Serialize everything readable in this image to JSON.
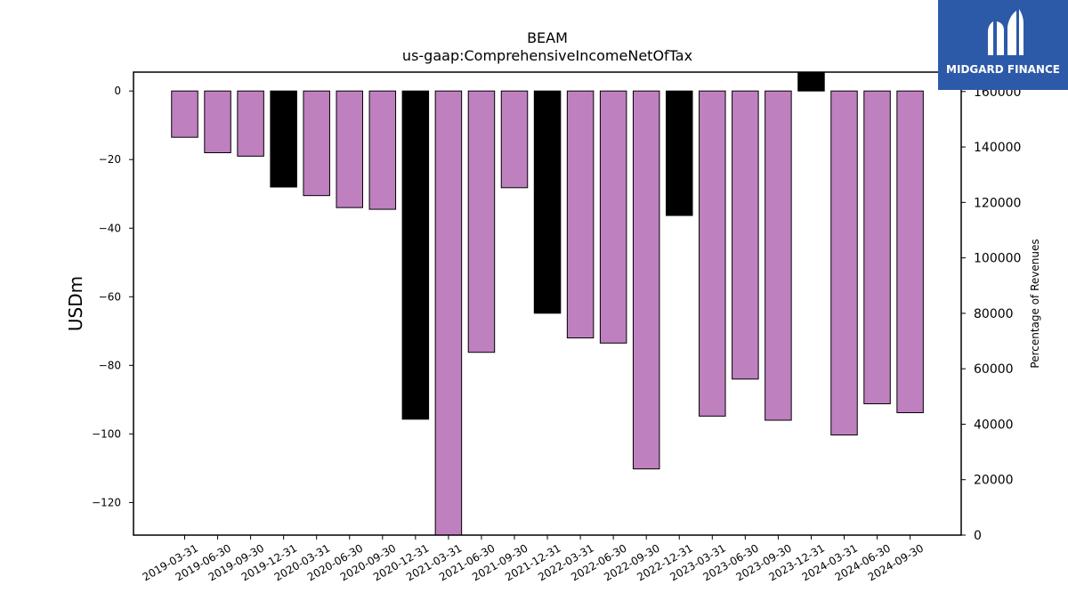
{
  "chart_data": {
    "type": "bar",
    "title": "BEAM",
    "subtitle": "us-gaap:ComprehensiveIncomeNetOfTax",
    "ylabel": "USDm",
    "ylabel_right": "Percentage of Revenues",
    "ylim": [
      -129.5,
      5.5
    ],
    "ylim_right": [
      0,
      167000
    ],
    "yticks": [
      0,
      -20,
      -40,
      -60,
      -80,
      -100,
      -120
    ],
    "yticks_right": [
      0,
      20000,
      40000,
      60000,
      80000,
      100000,
      120000,
      140000,
      160000
    ],
    "categories": [
      "2019-03-31",
      "2019-06-30",
      "2019-09-30",
      "2019-12-31",
      "2020-03-31",
      "2020-06-30",
      "2020-09-30",
      "2020-12-31",
      "2021-03-31",
      "2021-06-30",
      "2021-09-30",
      "2021-12-31",
      "2022-03-31",
      "2022-06-30",
      "2022-09-30",
      "2022-12-31",
      "2023-03-31",
      "2023-06-30",
      "2023-09-30",
      "2023-12-31",
      "2024-03-31",
      "2024-06-30",
      "2024-09-30"
    ],
    "values": [
      -13.5,
      -18,
      -19,
      -28,
      -30.5,
      -34,
      -34.5,
      -95.7,
      -129.5,
      -76.2,
      -28.2,
      -64.8,
      -72,
      -73.5,
      -110.2,
      -36.3,
      -94.8,
      -84,
      -96,
      5.5,
      -100.3,
      -91.2,
      -93.8
    ],
    "bar_colors": [
      "#bf80bf",
      "#bf80bf",
      "#bf80bf",
      "#000000",
      "#bf80bf",
      "#bf80bf",
      "#bf80bf",
      "#000000",
      "#bf80bf",
      "#bf80bf",
      "#bf80bf",
      "#000000",
      "#bf80bf",
      "#bf80bf",
      "#bf80bf",
      "#000000",
      "#bf80bf",
      "#bf80bf",
      "#bf80bf",
      "#000000",
      "#bf80bf",
      "#bf80bf",
      "#bf80bf"
    ],
    "grid": false,
    "legend": "none"
  },
  "logo": {
    "name": "MIDGARD FINANCE"
  }
}
